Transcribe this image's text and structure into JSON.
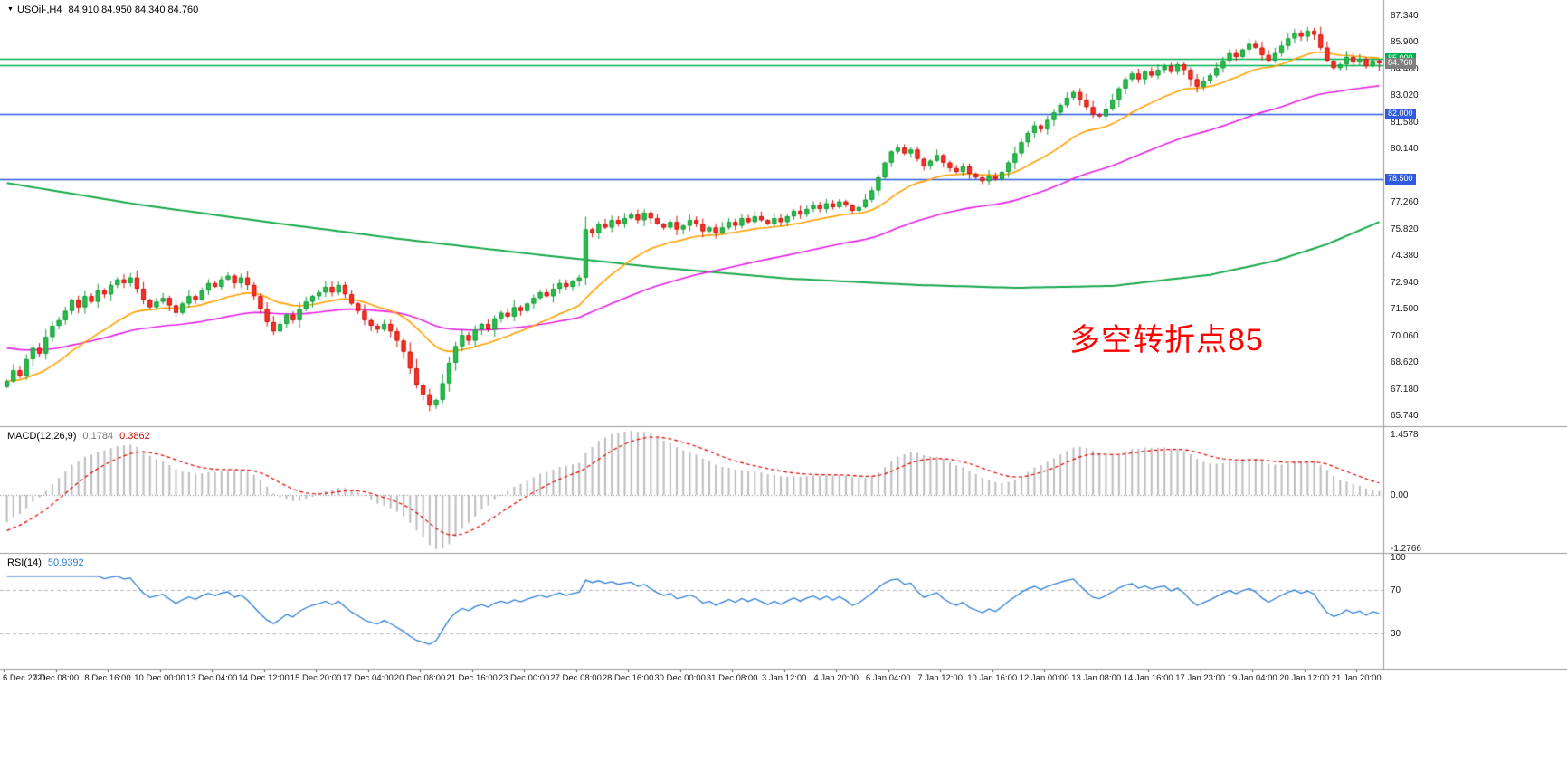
{
  "colors": {
    "background": "#ffffff",
    "panel_border": "#9a9a9a",
    "up": "#2abf4c",
    "up_border": "#149a38",
    "down": "#f5342b",
    "down_border": "#d01208",
    "macd_hist": "#bdbdbd",
    "macd_signal": "#e00000",
    "rsi_line": "#2f7ed8",
    "level_dash": "#b8b8b8",
    "zero_dot": "#8a8a8a"
  },
  "main_panel": {
    "symbol_icon": "▼",
    "title": "USOil-,H4",
    "ohlc_text": "84.910 84.950 84.340 84.760",
    "annotation": {
      "text": "多空转折点85",
      "color": "#ff0000"
    },
    "price_axis_labels": [
      "87.340",
      "85.900",
      "84.460",
      "83.020",
      "81.580",
      "80.140",
      "77.260",
      "75.820",
      "74.380",
      "72.940",
      "71.500",
      "70.060",
      "68.620",
      "67.180",
      "65.740"
    ],
    "price_tags": [
      {
        "label": "85.000",
        "value": 85.0,
        "bg": "#00b050"
      },
      {
        "label": "84.760",
        "value": 84.76,
        "bg": "#808080"
      },
      {
        "label": "82.000",
        "value": 82.0,
        "bg": "#2f5be0"
      },
      {
        "label": "78.500",
        "value": 78.5,
        "bg": "#2f5be0"
      }
    ]
  },
  "macd_panel": {
    "title": "MACD(12,26,9)",
    "value_main": "0.1784",
    "value_signal": "0.3862",
    "axis": [
      {
        "label": "1.4578",
        "value": 1.4578
      },
      {
        "label": "0.00",
        "value": 0
      },
      {
        "label": "-1.2766",
        "value": -1.2766
      }
    ]
  },
  "rsi_panel": {
    "title": "RSI(14)",
    "value": "50.9392",
    "axis": [
      {
        "label": "100",
        "value": 100
      },
      {
        "label": "70",
        "value": 70
      },
      {
        "label": "30",
        "value": 30
      }
    ],
    "levels": [
      70,
      30
    ]
  },
  "chart_data": [
    {
      "type": "candlestick",
      "title": "USOil-,H4",
      "timeframe": "H4",
      "ylim": [
        65.33,
        87.78
      ],
      "x_label_every": 8,
      "x_labels": [
        "6 Dec 2021",
        "7 Dec 08:00",
        "8 Dec 16:00",
        "10 Dec 00:00",
        "13 Dec 04:00",
        "14 Dec 12:00",
        "15 Dec 20:00",
        "17 Dec 04:00",
        "20 Dec 08:00",
        "21 Dec 16:00",
        "23 Dec 00:00",
        "27 Dec 08:00",
        "28 Dec 16:00",
        "30 Dec 00:00",
        "31 Dec 08:00",
        "3 Jan 12:00",
        "4 Jan 20:00",
        "6 Jan 04:00",
        "7 Jan 12:00",
        "10 Jan 16:00",
        "12 Jan 00:00",
        "13 Jan 08:00",
        "14 Jan 16:00",
        "17 Jan 23:00",
        "19 Jan 04:00",
        "20 Jan 12:00",
        "21 Jan 20:00"
      ],
      "first_open": 67.3,
      "last_candle": {
        "open": 84.91,
        "high": 84.95,
        "low": 84.34,
        "close": 84.76
      },
      "closes": [
        67.6,
        68.2,
        67.9,
        68.8,
        69.4,
        69.1,
        70.0,
        70.6,
        70.9,
        71.4,
        72.0,
        71.6,
        72.2,
        71.9,
        72.5,
        72.3,
        72.8,
        73.1,
        72.9,
        73.2,
        72.6,
        72.0,
        71.6,
        71.9,
        72.1,
        71.7,
        71.3,
        71.8,
        72.2,
        72.0,
        72.5,
        72.9,
        72.7,
        73.1,
        73.3,
        72.9,
        73.2,
        72.8,
        72.2,
        71.5,
        70.8,
        70.3,
        70.7,
        71.2,
        70.9,
        71.5,
        71.9,
        72.2,
        72.4,
        72.7,
        72.4,
        72.8,
        72.3,
        71.8,
        71.4,
        70.9,
        70.6,
        70.4,
        70.7,
        70.3,
        69.8,
        69.2,
        68.3,
        67.4,
        66.9,
        66.3,
        66.6,
        67.5,
        68.6,
        69.5,
        70.1,
        69.8,
        70.4,
        70.7,
        70.4,
        71.0,
        71.3,
        71.1,
        71.6,
        71.4,
        71.8,
        72.1,
        72.4,
        72.2,
        72.6,
        72.9,
        72.7,
        73.0,
        73.2,
        75.8,
        75.6,
        76.1,
        75.9,
        76.3,
        76.1,
        76.4,
        76.6,
        76.3,
        76.7,
        76.4,
        76.1,
        75.9,
        76.2,
        75.8,
        76.0,
        76.3,
        76.1,
        75.7,
        75.9,
        75.6,
        75.9,
        76.2,
        76.0,
        76.4,
        76.2,
        76.5,
        76.3,
        76.1,
        76.4,
        76.2,
        76.5,
        76.8,
        76.6,
        76.9,
        77.1,
        76.9,
        77.2,
        77.0,
        77.3,
        77.1,
        76.8,
        77.0,
        77.4,
        77.9,
        78.6,
        79.4,
        80.0,
        80.2,
        79.9,
        80.1,
        79.6,
        79.2,
        79.5,
        79.8,
        79.4,
        79.1,
        78.9,
        79.2,
        78.8,
        78.6,
        78.4,
        78.7,
        78.5,
        78.9,
        79.4,
        79.9,
        80.5,
        81.0,
        81.4,
        81.2,
        81.7,
        82.1,
        82.5,
        82.9,
        83.2,
        82.8,
        82.4,
        82.0,
        81.9,
        82.3,
        82.8,
        83.4,
        83.9,
        84.2,
        83.9,
        84.3,
        84.1,
        84.4,
        84.6,
        84.3,
        84.7,
        84.4,
        83.9,
        83.5,
        83.8,
        84.1,
        84.5,
        84.9,
        85.3,
        85.1,
        85.5,
        85.8,
        85.6,
        85.2,
        84.9,
        85.3,
        85.7,
        86.1,
        86.4,
        86.2,
        86.5,
        86.3,
        85.6,
        84.9,
        84.5,
        84.7,
        85.1,
        84.8,
        85.0,
        84.6,
        84.91,
        84.76
      ],
      "hlines": [
        {
          "value": 85.0,
          "color": "#00b050"
        },
        {
          "value": 84.66,
          "color": "#00b050"
        },
        {
          "value": 82.0,
          "color": "#2f5be0"
        },
        {
          "value": 78.5,
          "color": "#2f5be0"
        }
      ],
      "moving_averages": [
        {
          "name": "ma-fast",
          "period": 20,
          "start": 67.6,
          "color": "#ffa000"
        },
        {
          "name": "ma-medium",
          "period": 60,
          "start": 69.4,
          "color": "#e421e4"
        },
        {
          "name": "ma-slow",
          "color": "#17a84b",
          "points": [
            [
              0,
              78.3
            ],
            [
              20,
              77.15
            ],
            [
              40,
              76.2
            ],
            [
              60,
              75.3
            ],
            [
              80,
              74.5
            ],
            [
              100,
              73.75
            ],
            [
              120,
              73.15
            ],
            [
              140,
              72.8
            ],
            [
              155,
              72.65
            ],
            [
              170,
              72.75
            ],
            [
              185,
              73.35
            ],
            [
              195,
              74.1
            ],
            [
              203,
              75.0
            ],
            [
              211,
              76.2
            ]
          ]
        }
      ]
    },
    {
      "type": "macd",
      "params": [
        12,
        26,
        9
      ],
      "current_main": 0.1784,
      "current_signal": 0.3862,
      "ylim": [
        -1.2766,
        1.4578
      ],
      "derived_from": "chart_data.0.closes"
    },
    {
      "type": "rsi",
      "period": 14,
      "current": 50.9392,
      "levels": [
        70,
        30
      ],
      "ylim": [
        0,
        100
      ],
      "derived_from": "chart_data.0.closes"
    }
  ]
}
